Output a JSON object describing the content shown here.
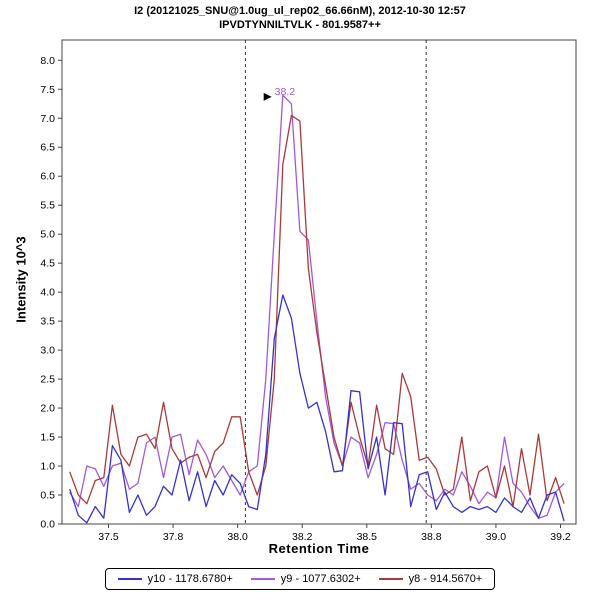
{
  "window": {
    "title1": "I2 (20121025_SNU@1.0ug_ul_rep02_66.66nM), 2012-10-30 12:57",
    "title2": "IPVDTYNNILTVLK - 801.9587++"
  },
  "axes": {
    "y_label": "Intensity 10^3",
    "x_label": "Retention Time"
  },
  "chart_data": {
    "type": "line",
    "title": "I2 (20121025_SNU@1.0ug_ul_rep02_66.66nM), 2012-10-30 12:57",
    "subtitle": "IPVDTYNNILTVLK - 801.9587++",
    "xlabel": "Retention Time",
    "ylabel": "Intensity 10^3",
    "xlim": [
      37.32,
      39.31
    ],
    "ylim": [
      0,
      8.35
    ],
    "grid": false,
    "legend_position": "bottom",
    "x_ticks": {
      "values": [
        37.5,
        37.75,
        38.0,
        38.25,
        38.5,
        38.75,
        39.0,
        39.25
      ],
      "labels": [
        "37.5",
        "37.8",
        "38.0",
        "38.2",
        "38.5",
        "38.8",
        "39.0",
        "39.2"
      ]
    },
    "y_ticks": [
      0.0,
      0.5,
      1.0,
      1.5,
      2.0,
      2.5,
      3.0,
      3.5,
      4.0,
      4.5,
      5.0,
      5.5,
      6.0,
      6.5,
      7.0,
      7.5,
      8.0
    ],
    "boundaries": [
      38.03,
      38.73
    ],
    "annotation": {
      "text": "38.2",
      "x": 38.155,
      "y": 7.42,
      "color": "#9b59d3"
    },
    "x": [
      37.35,
      37.383,
      37.416,
      37.449,
      37.482,
      37.515,
      37.548,
      37.581,
      37.614,
      37.647,
      37.68,
      37.713,
      37.746,
      37.779,
      37.812,
      37.845,
      37.878,
      37.911,
      37.944,
      37.977,
      38.01,
      38.043,
      38.076,
      38.109,
      38.142,
      38.175,
      38.208,
      38.241,
      38.274,
      38.307,
      38.34,
      38.373,
      38.406,
      38.439,
      38.472,
      38.505,
      38.538,
      38.571,
      38.604,
      38.637,
      38.67,
      38.703,
      38.736,
      38.769,
      38.802,
      38.835,
      38.868,
      38.901,
      38.934,
      38.967,
      39.0,
      39.033,
      39.066,
      39.099,
      39.132,
      39.165,
      39.198,
      39.231,
      39.264
    ],
    "series": [
      {
        "name": "y9",
        "label": "y9 - 1077.6302+",
        "color": "#a05ad9",
        "values": [
          0.55,
          0.3,
          1.0,
          0.95,
          0.65,
          1.0,
          1.05,
          0.6,
          0.7,
          1.4,
          1.5,
          0.8,
          1.5,
          1.55,
          0.85,
          1.45,
          1.2,
          0.8,
          1.0,
          0.75,
          0.5,
          0.9,
          1.0,
          2.5,
          5.0,
          7.4,
          7.25,
          5.05,
          4.9,
          3.5,
          2.2,
          1.4,
          1.0,
          1.5,
          1.4,
          0.8,
          1.2,
          1.75,
          1.73,
          1.1,
          0.6,
          0.7,
          0.5,
          0.4,
          0.6,
          0.5,
          0.9,
          0.65,
          0.35,
          0.55,
          0.45,
          1.5,
          0.7,
          0.55,
          0.3,
          0.1,
          0.15,
          0.55,
          0.7
        ]
      },
      {
        "name": "y8",
        "label": "y8 - 914.5670+",
        "color": "#aa3939",
        "values": [
          0.9,
          0.5,
          0.35,
          0.75,
          0.8,
          2.05,
          1.2,
          1.0,
          1.5,
          1.55,
          1.3,
          2.1,
          1.3,
          1.05,
          1.15,
          1.2,
          0.8,
          1.25,
          1.4,
          1.85,
          1.85,
          0.9,
          0.5,
          1.0,
          2.5,
          6.2,
          7.05,
          6.95,
          4.4,
          3.3,
          2.4,
          1.5,
          1.0,
          2.1,
          1.5,
          1.0,
          2.05,
          1.3,
          1.2,
          2.6,
          2.2,
          1.1,
          1.15,
          0.95,
          0.5,
          0.6,
          1.5,
          0.4,
          0.9,
          1.0,
          0.45,
          1.0,
          0.3,
          1.3,
          0.5,
          1.55,
          0.4,
          0.8,
          0.35
        ]
      },
      {
        "name": "y10",
        "label": "y10 - 1178.6780+",
        "color": "#3333cc",
        "values": [
          0.6,
          0.15,
          0.02,
          0.3,
          0.1,
          1.35,
          1.1,
          0.2,
          0.5,
          0.15,
          0.3,
          0.65,
          0.5,
          1.1,
          0.4,
          0.9,
          0.3,
          0.75,
          0.5,
          0.85,
          0.7,
          0.3,
          0.25,
          1.2,
          3.2,
          3.95,
          3.55,
          2.6,
          2.0,
          2.1,
          1.6,
          0.9,
          0.92,
          2.3,
          2.28,
          0.95,
          1.5,
          0.5,
          1.75,
          1.73,
          0.3,
          0.85,
          0.9,
          0.25,
          0.55,
          0.3,
          0.2,
          0.3,
          0.25,
          0.3,
          0.2,
          0.45,
          0.3,
          0.2,
          0.45,
          0.1,
          0.5,
          0.55,
          0.05
        ]
      }
    ],
    "legend_order": [
      "y10 - 1178.6780+",
      "y9 - 1077.6302+",
      "y8 - 914.5670+"
    ]
  }
}
